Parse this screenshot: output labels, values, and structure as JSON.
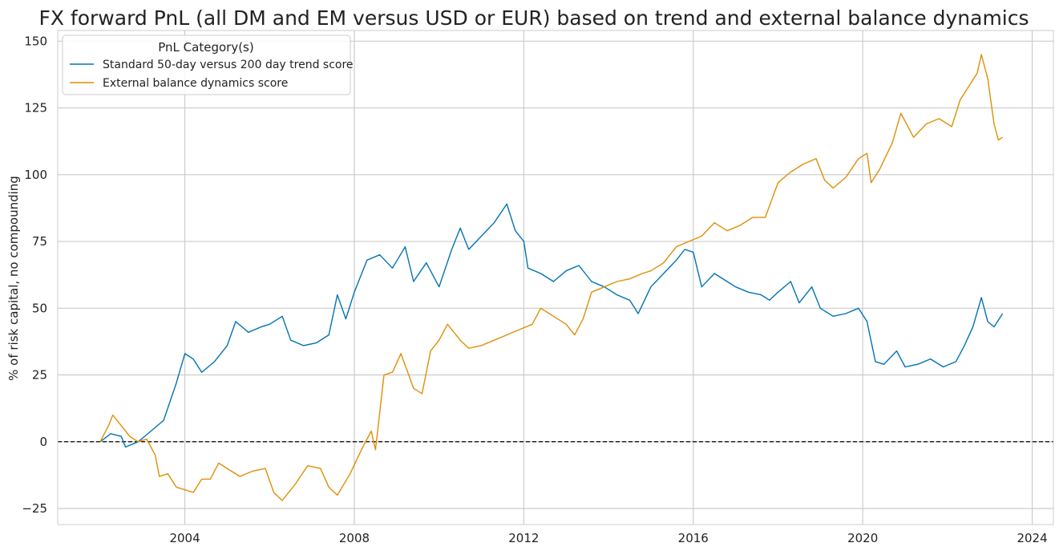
{
  "chart_data": {
    "type": "line",
    "title": "FX forward PnL (all DM and EM versus USD or EUR) based on trend and external balance dynamics",
    "xlabel": "",
    "ylabel": "% of risk capital, no compounding",
    "xlim": [
      2001.0,
      2024.5
    ],
    "ylim": [
      -31,
      154
    ],
    "x_ticks": [
      2004,
      2008,
      2012,
      2016,
      2020,
      2024
    ],
    "x_tick_labels": [
      "2004",
      "2008",
      "2012",
      "2016",
      "2020",
      "2024"
    ],
    "y_ticks": [
      -25,
      0,
      25,
      50,
      75,
      100,
      125,
      150
    ],
    "y_tick_labels": [
      "−25",
      "0",
      "25",
      "50",
      "75",
      "100",
      "125",
      "150"
    ],
    "grid": true,
    "zero_line": {
      "value": 0,
      "style": "dashed",
      "color": "#000000"
    },
    "legend": {
      "title": "PnL Category(s)",
      "placement": "top-left"
    },
    "series": [
      {
        "name": "Standard 50-day versus 200 day trend score",
        "color": "#0173b2",
        "points": [
          [
            2002.0,
            0
          ],
          [
            2002.25,
            3
          ],
          [
            2002.5,
            2
          ],
          [
            2002.6,
            -2
          ],
          [
            2002.9,
            0
          ],
          [
            2003.2,
            4
          ],
          [
            2003.5,
            8
          ],
          [
            2003.8,
            22
          ],
          [
            2004.0,
            33
          ],
          [
            2004.2,
            31
          ],
          [
            2004.4,
            26
          ],
          [
            2004.7,
            30
          ],
          [
            2005.0,
            36
          ],
          [
            2005.2,
            45
          ],
          [
            2005.5,
            41
          ],
          [
            2005.8,
            43
          ],
          [
            2006.0,
            44
          ],
          [
            2006.3,
            47
          ],
          [
            2006.5,
            38
          ],
          [
            2006.8,
            36
          ],
          [
            2007.1,
            37
          ],
          [
            2007.4,
            40
          ],
          [
            2007.6,
            55
          ],
          [
            2007.8,
            46
          ],
          [
            2008.0,
            56
          ],
          [
            2008.3,
            68
          ],
          [
            2008.6,
            70
          ],
          [
            2008.9,
            65
          ],
          [
            2009.2,
            73
          ],
          [
            2009.4,
            60
          ],
          [
            2009.7,
            67
          ],
          [
            2010.0,
            58
          ],
          [
            2010.3,
            72
          ],
          [
            2010.5,
            80
          ],
          [
            2010.7,
            72
          ],
          [
            2011.0,
            77
          ],
          [
            2011.3,
            82
          ],
          [
            2011.6,
            89
          ],
          [
            2011.8,
            79
          ],
          [
            2012.0,
            75
          ],
          [
            2012.1,
            65
          ],
          [
            2012.4,
            63
          ],
          [
            2012.7,
            60
          ],
          [
            2013.0,
            64
          ],
          [
            2013.3,
            66
          ],
          [
            2013.6,
            60
          ],
          [
            2013.9,
            58
          ],
          [
            2014.2,
            55
          ],
          [
            2014.5,
            53
          ],
          [
            2014.7,
            48
          ],
          [
            2015.0,
            58
          ],
          [
            2015.3,
            63
          ],
          [
            2015.6,
            68
          ],
          [
            2015.8,
            72
          ],
          [
            2016.0,
            71
          ],
          [
            2016.2,
            58
          ],
          [
            2016.5,
            63
          ],
          [
            2016.8,
            60
          ],
          [
            2017.0,
            58
          ],
          [
            2017.3,
            56
          ],
          [
            2017.6,
            55
          ],
          [
            2017.8,
            53
          ],
          [
            2018.0,
            56
          ],
          [
            2018.3,
            60
          ],
          [
            2018.5,
            52
          ],
          [
            2018.8,
            58
          ],
          [
            2019.0,
            50
          ],
          [
            2019.3,
            47
          ],
          [
            2019.6,
            48
          ],
          [
            2019.9,
            50
          ],
          [
            2020.1,
            45
          ],
          [
            2020.3,
            30
          ],
          [
            2020.5,
            29
          ],
          [
            2020.8,
            34
          ],
          [
            2021.0,
            28
          ],
          [
            2021.3,
            29
          ],
          [
            2021.6,
            31
          ],
          [
            2021.9,
            28
          ],
          [
            2022.2,
            30
          ],
          [
            2022.4,
            36
          ],
          [
            2022.6,
            43
          ],
          [
            2022.8,
            54
          ],
          [
            2022.95,
            45
          ],
          [
            2023.1,
            43
          ],
          [
            2023.3,
            48
          ]
        ]
      },
      {
        "name": "External balance dynamics score",
        "color": "#de8f05",
        "points": [
          [
            2002.0,
            0
          ],
          [
            2002.2,
            6
          ],
          [
            2002.3,
            10
          ],
          [
            2002.5,
            6
          ],
          [
            2002.7,
            2
          ],
          [
            2002.9,
            0
          ],
          [
            2003.1,
            1
          ],
          [
            2003.3,
            -5
          ],
          [
            2003.4,
            -13
          ],
          [
            2003.6,
            -12
          ],
          [
            2003.8,
            -17
          ],
          [
            2004.0,
            -18
          ],
          [
            2004.2,
            -19
          ],
          [
            2004.4,
            -14
          ],
          [
            2004.6,
            -14
          ],
          [
            2004.8,
            -8
          ],
          [
            2005.0,
            -10
          ],
          [
            2005.3,
            -13
          ],
          [
            2005.6,
            -11
          ],
          [
            2005.9,
            -10
          ],
          [
            2006.1,
            -19
          ],
          [
            2006.3,
            -22
          ],
          [
            2006.6,
            -16
          ],
          [
            2006.9,
            -9
          ],
          [
            2007.2,
            -10
          ],
          [
            2007.4,
            -17
          ],
          [
            2007.6,
            -20
          ],
          [
            2007.9,
            -12
          ],
          [
            2008.2,
            -2
          ],
          [
            2008.4,
            4
          ],
          [
            2008.5,
            -3
          ],
          [
            2008.7,
            25
          ],
          [
            2008.9,
            26
          ],
          [
            2009.1,
            33
          ],
          [
            2009.4,
            20
          ],
          [
            2009.6,
            18
          ],
          [
            2009.8,
            34
          ],
          [
            2010.0,
            38
          ],
          [
            2010.2,
            44
          ],
          [
            2010.5,
            38
          ],
          [
            2010.7,
            35
          ],
          [
            2011.0,
            36
          ],
          [
            2011.3,
            38
          ],
          [
            2011.6,
            40
          ],
          [
            2011.9,
            42
          ],
          [
            2012.2,
            44
          ],
          [
            2012.4,
            50
          ],
          [
            2012.7,
            47
          ],
          [
            2013.0,
            44
          ],
          [
            2013.2,
            40
          ],
          [
            2013.4,
            46
          ],
          [
            2013.6,
            56
          ],
          [
            2013.9,
            58
          ],
          [
            2014.2,
            60
          ],
          [
            2014.5,
            61
          ],
          [
            2014.8,
            63
          ],
          [
            2015.0,
            64
          ],
          [
            2015.3,
            67
          ],
          [
            2015.6,
            73
          ],
          [
            2015.9,
            75
          ],
          [
            2016.2,
            77
          ],
          [
            2016.5,
            82
          ],
          [
            2016.8,
            79
          ],
          [
            2017.1,
            81
          ],
          [
            2017.4,
            84
          ],
          [
            2017.7,
            84
          ],
          [
            2018.0,
            97
          ],
          [
            2018.3,
            101
          ],
          [
            2018.6,
            104
          ],
          [
            2018.9,
            106
          ],
          [
            2019.1,
            98
          ],
          [
            2019.3,
            95
          ],
          [
            2019.6,
            99
          ],
          [
            2019.9,
            106
          ],
          [
            2020.1,
            108
          ],
          [
            2020.2,
            97
          ],
          [
            2020.4,
            102
          ],
          [
            2020.7,
            112
          ],
          [
            2020.9,
            123
          ],
          [
            2021.2,
            114
          ],
          [
            2021.5,
            119
          ],
          [
            2021.8,
            121
          ],
          [
            2022.1,
            118
          ],
          [
            2022.3,
            128
          ],
          [
            2022.5,
            133
          ],
          [
            2022.7,
            138
          ],
          [
            2022.8,
            145
          ],
          [
            2022.95,
            136
          ],
          [
            2023.1,
            119
          ],
          [
            2023.2,
            113
          ],
          [
            2023.3,
            114
          ]
        ]
      }
    ]
  }
}
